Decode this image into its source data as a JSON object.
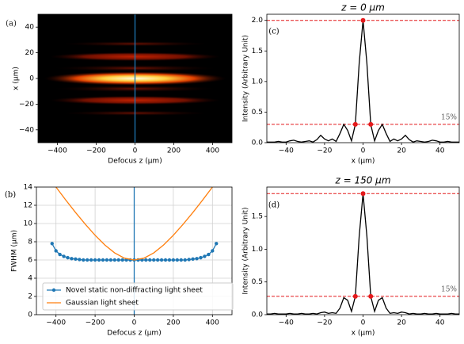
{
  "chart_data": [
    {
      "type": "heatmap",
      "label": "(a)",
      "xlabel": "Defocus z (μm)",
      "ylabel": "x (μm)",
      "xlim": [
        -500,
        500
      ],
      "ylim": [
        -50,
        50
      ],
      "xticks": [
        {
          "value": -400,
          "label": "−400"
        },
        {
          "value": -200,
          "label": "−200"
        },
        0,
        200,
        400
      ],
      "yticks": [
        {
          "value": -40,
          "label": "−40"
        },
        {
          "value": -20,
          "label": "−20"
        },
        0,
        20,
        40
      ],
      "vline": 0,
      "vline_color": "#1f77b4",
      "grid": false
    },
    {
      "type": "line",
      "label": "(b)",
      "xlabel": "Defocus z (μm)",
      "ylabel": "FWHM (μm)",
      "xlim": [
        -500,
        500
      ],
      "ylim": [
        0,
        14
      ],
      "xticks": [
        {
          "value": -400,
          "label": "−400"
        },
        {
          "value": -200,
          "label": "−200"
        },
        0,
        200,
        400
      ],
      "yticks": [
        0,
        2,
        4,
        6,
        8,
        10,
        12,
        14
      ],
      "vline": 0,
      "vline_color": "#1f77b4",
      "grid": true,
      "legend": "lower center",
      "series": [
        {
          "name": "Novel static non-diffracting light sheet",
          "color": "#1f77b4",
          "marker": true,
          "x": [
            -420,
            -400,
            -380,
            -360,
            -340,
            -320,
            -300,
            -280,
            -260,
            -240,
            -220,
            -200,
            -180,
            -160,
            -140,
            -120,
            -100,
            -80,
            -60,
            -40,
            -20,
            0,
            20,
            40,
            60,
            80,
            100,
            120,
            140,
            160,
            180,
            200,
            220,
            240,
            260,
            280,
            300,
            320,
            340,
            360,
            380,
            400,
            420
          ],
          "values": [
            7.8,
            7.0,
            6.6,
            6.4,
            6.25,
            6.15,
            6.1,
            6.05,
            6.0,
            6.0,
            6.0,
            6.0,
            6.0,
            6.0,
            6.0,
            6.0,
            6.0,
            6.0,
            6.0,
            6.0,
            6.0,
            6.0,
            6.0,
            6.0,
            6.0,
            6.0,
            6.0,
            6.0,
            6.0,
            6.0,
            6.0,
            6.0,
            6.0,
            6.0,
            6.0,
            6.05,
            6.1,
            6.15,
            6.25,
            6.4,
            6.6,
            7.0,
            7.8
          ]
        },
        {
          "name": "Gaussian light sheet",
          "color": "#ff7f0e",
          "marker": false,
          "x": [
            -400,
            -350,
            -300,
            -250,
            -200,
            -150,
            -100,
            -50,
            0,
            50,
            100,
            150,
            200,
            250,
            300,
            350,
            400
          ],
          "values": [
            14.0,
            12.58,
            11.21,
            9.92,
            8.71,
            7.64,
            6.78,
            6.2,
            6.0,
            6.2,
            6.78,
            7.64,
            8.71,
            9.92,
            11.21,
            12.58,
            14.0
          ]
        }
      ]
    },
    {
      "type": "line",
      "label": "(c)",
      "title": "z = 0 μm",
      "xlabel": "x (μm)",
      "ylabel": "Intensity (Arbitrary Unit)",
      "xlim": [
        -50,
        50
      ],
      "ylim": [
        0,
        2.1
      ],
      "xticks": [
        {
          "value": -40,
          "label": "−40"
        },
        {
          "value": -20,
          "label": "−20"
        },
        0,
        20,
        40
      ],
      "yticks": [
        {
          "value": 0,
          "label": "0.0"
        },
        0.5,
        {
          "value": 1,
          "label": "1.0"
        },
        1.5,
        {
          "value": 2,
          "label": "2.0"
        }
      ],
      "grid": false,
      "hlines": [
        2.0,
        0.3
      ],
      "hline_color": "#e41a1c",
      "annotation": "15%",
      "points": {
        "x": [
          -4,
          0,
          4
        ],
        "values": [
          0.3,
          2.0,
          0.3
        ],
        "color": "#e41a1c"
      },
      "series": [
        {
          "color": "#000000",
          "marker": false,
          "x": [
            -50,
            -48,
            -46,
            -44,
            -42,
            -40,
            -38,
            -36,
            -34,
            -32,
            -30,
            -28,
            -26,
            -24,
            -22,
            -20,
            -18,
            -16,
            -14,
            -12,
            -10,
            -8,
            -6,
            -4,
            -2,
            0,
            2,
            4,
            6,
            8,
            10,
            12,
            14,
            16,
            18,
            20,
            22,
            24,
            26,
            28,
            30,
            32,
            34,
            36,
            38,
            40,
            42,
            44,
            46,
            48,
            50
          ],
          "values": [
            0.01,
            0.01,
            0.01,
            0.02,
            0.01,
            0.01,
            0.03,
            0.04,
            0.02,
            0.01,
            0.02,
            0.03,
            0.01,
            0.05,
            0.12,
            0.06,
            0.03,
            0.06,
            0.02,
            0.15,
            0.3,
            0.2,
            0.03,
            0.3,
            1.3,
            2.0,
            1.3,
            0.3,
            0.03,
            0.2,
            0.3,
            0.15,
            0.02,
            0.06,
            0.03,
            0.06,
            0.12,
            0.05,
            0.01,
            0.03,
            0.02,
            0.01,
            0.02,
            0.04,
            0.03,
            0.01,
            0.01,
            0.02,
            0.01,
            0.01,
            0.01
          ]
        }
      ]
    },
    {
      "type": "line",
      "label": "(d)",
      "title": "z = 150 μm",
      "xlabel": "x (μm)",
      "ylabel": "Intensity (Arbitrary Unit)",
      "xlim": [
        -50,
        50
      ],
      "ylim": [
        0,
        1.95
      ],
      "xticks": [
        {
          "value": -40,
          "label": "−40"
        },
        {
          "value": -20,
          "label": "−20"
        },
        0,
        20,
        40
      ],
      "yticks": [
        {
          "value": 0,
          "label": "0.0"
        },
        0.5,
        {
          "value": 1,
          "label": "1.0"
        },
        1.5
      ],
      "grid": false,
      "hlines": [
        1.85,
        0.28
      ],
      "hline_color": "#e41a1c",
      "annotation": "15%",
      "points": {
        "x": [
          -4,
          0,
          4
        ],
        "values": [
          0.28,
          1.85,
          0.28
        ],
        "color": "#e41a1c"
      },
      "series": [
        {
          "color": "#000000",
          "marker": false,
          "x": [
            -50,
            -48,
            -46,
            -44,
            -42,
            -40,
            -38,
            -36,
            -34,
            -32,
            -30,
            -28,
            -26,
            -24,
            -22,
            -20,
            -18,
            -16,
            -14,
            -12,
            -10,
            -8,
            -6,
            -4,
            -2,
            0,
            2,
            4,
            6,
            8,
            10,
            12,
            14,
            16,
            18,
            20,
            22,
            24,
            26,
            28,
            30,
            32,
            34,
            36,
            38,
            40,
            42,
            44,
            46,
            48,
            50
          ],
          "values": [
            0.01,
            0.01,
            0.02,
            0.01,
            0.01,
            0.01,
            0.02,
            0.01,
            0.01,
            0.02,
            0.01,
            0.01,
            0.02,
            0.01,
            0.03,
            0.04,
            0.02,
            0.03,
            0.02,
            0.1,
            0.26,
            0.22,
            0.05,
            0.28,
            1.2,
            1.85,
            1.2,
            0.28,
            0.05,
            0.22,
            0.26,
            0.1,
            0.02,
            0.03,
            0.02,
            0.04,
            0.03,
            0.01,
            0.02,
            0.01,
            0.01,
            0.02,
            0.01,
            0.01,
            0.02,
            0.01,
            0.01,
            0.01,
            0.02,
            0.01,
            0.01
          ]
        }
      ]
    }
  ]
}
